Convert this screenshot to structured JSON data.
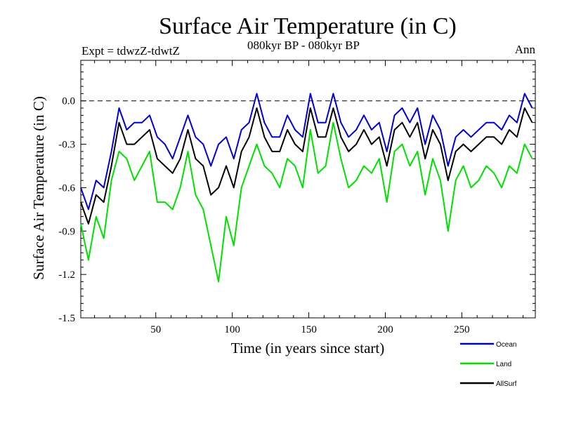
{
  "chart_data": {
    "type": "line",
    "title": "Surface Air Temperature (in C)",
    "subtitle_left": "Expt = tdwzZ-tdwtZ",
    "subtitle_center": "080kyr BP - 080kyr BP",
    "subtitle_right": "Ann",
    "xlabel": "Time (in years since start)",
    "ylabel": "Surface Air Temperature (in C)",
    "xlim": [
      1,
      298
    ],
    "ylim": [
      -1.5,
      0.28
    ],
    "xticks": [
      50,
      100,
      150,
      200,
      250
    ],
    "xtick_labels": [
      "50",
      "100",
      "150",
      "200",
      "250"
    ],
    "yticks": [
      -1.5,
      -1.2,
      -0.9,
      -0.6,
      -0.3,
      0.0
    ],
    "ytick_labels": [
      "-1.5",
      "-1.2",
      "-0.9",
      "-0.6",
      "-0.3",
      "0.0"
    ],
    "reference_line": {
      "y": 0.0,
      "style": "dashed",
      "color": "#000000"
    },
    "legend_placement": "bottom-right, below plot",
    "grid": false,
    "x": [
      1,
      6,
      11,
      16,
      21,
      26,
      31,
      36,
      41,
      46,
      51,
      56,
      61,
      66,
      71,
      76,
      81,
      86,
      91,
      96,
      101,
      106,
      111,
      116,
      121,
      126,
      131,
      136,
      141,
      146,
      151,
      156,
      161,
      166,
      171,
      176,
      181,
      186,
      191,
      196,
      201,
      206,
      211,
      216,
      221,
      226,
      231,
      236,
      241,
      246,
      251,
      256,
      261,
      266,
      271,
      276,
      281,
      286,
      291,
      296
    ],
    "series": [
      {
        "name": "Ocean",
        "color": "#0000d0",
        "values": [
          -0.6,
          -0.75,
          -0.55,
          -0.6,
          -0.35,
          -0.05,
          -0.2,
          -0.15,
          -0.15,
          -0.1,
          -0.25,
          -0.3,
          -0.4,
          -0.25,
          -0.1,
          -0.25,
          -0.3,
          -0.45,
          -0.3,
          -0.25,
          -0.4,
          -0.2,
          -0.15,
          0.05,
          -0.15,
          -0.25,
          -0.25,
          -0.1,
          -0.2,
          -0.25,
          0.05,
          -0.15,
          -0.15,
          0.05,
          -0.15,
          -0.25,
          -0.2,
          -0.1,
          -0.2,
          -0.15,
          -0.35,
          -0.1,
          -0.05,
          -0.15,
          -0.05,
          -0.3,
          -0.1,
          -0.2,
          -0.45,
          -0.25,
          -0.2,
          -0.25,
          -0.2,
          -0.15,
          -0.15,
          -0.2,
          -0.1,
          -0.15,
          0.05,
          -0.05
        ]
      },
      {
        "name": "Land",
        "color": "#00e000",
        "values": [
          -0.85,
          -1.1,
          -0.8,
          -0.95,
          -0.55,
          -0.35,
          -0.4,
          -0.55,
          -0.45,
          -0.35,
          -0.7,
          -0.7,
          -0.75,
          -0.6,
          -0.35,
          -0.65,
          -0.75,
          -1.0,
          -1.25,
          -0.8,
          -1.0,
          -0.6,
          -0.45,
          -0.3,
          -0.45,
          -0.5,
          -0.6,
          -0.4,
          -0.45,
          -0.6,
          -0.2,
          -0.5,
          -0.45,
          -0.15,
          -0.4,
          -0.6,
          -0.55,
          -0.45,
          -0.5,
          -0.4,
          -0.7,
          -0.35,
          -0.3,
          -0.45,
          -0.35,
          -0.65,
          -0.4,
          -0.55,
          -0.9,
          -0.55,
          -0.45,
          -0.6,
          -0.55,
          -0.45,
          -0.5,
          -0.6,
          -0.45,
          -0.5,
          -0.3,
          -0.4
        ]
      },
      {
        "name": "AllSurf",
        "color": "#000000",
        "values": [
          -0.7,
          -0.85,
          -0.65,
          -0.7,
          -0.45,
          -0.15,
          -0.3,
          -0.3,
          -0.25,
          -0.2,
          -0.4,
          -0.45,
          -0.5,
          -0.4,
          -0.2,
          -0.4,
          -0.45,
          -0.65,
          -0.6,
          -0.45,
          -0.6,
          -0.35,
          -0.25,
          -0.05,
          -0.25,
          -0.35,
          -0.35,
          -0.2,
          -0.3,
          -0.35,
          -0.05,
          -0.25,
          -0.25,
          -0.05,
          -0.25,
          -0.35,
          -0.3,
          -0.2,
          -0.3,
          -0.25,
          -0.45,
          -0.2,
          -0.15,
          -0.25,
          -0.15,
          -0.4,
          -0.2,
          -0.3,
          -0.55,
          -0.35,
          -0.3,
          -0.35,
          -0.3,
          -0.25,
          -0.25,
          -0.3,
          -0.2,
          -0.25,
          -0.05,
          -0.15
        ]
      }
    ]
  }
}
